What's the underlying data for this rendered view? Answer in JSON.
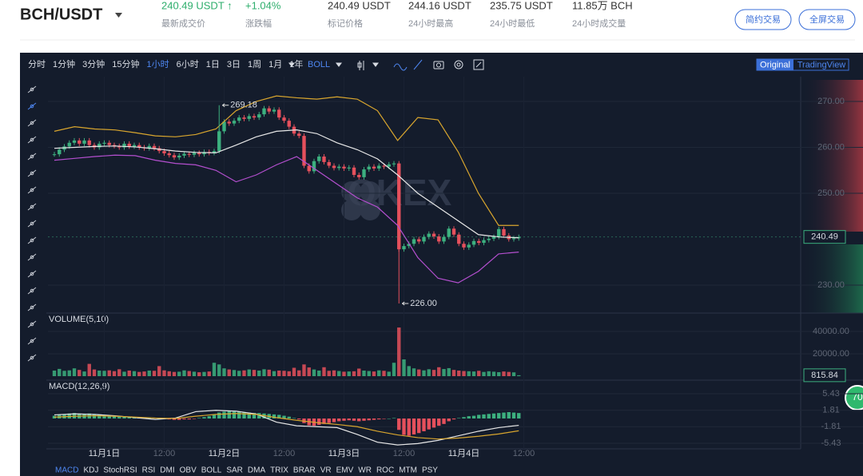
{
  "header": {
    "pair": "BCH/USDT",
    "last_price": "240.49 USDT ↑",
    "last_label": "最新成交价",
    "change": "+1.04%",
    "change_label": "涨跌幅",
    "mark_price": "240.49 USDT",
    "mark_label": "标记价格",
    "high": "244.16 USDT",
    "high_label": "24小时最高",
    "low": "235.75 USDT",
    "low_label": "24小时最低",
    "volume": "11.85万 BCH",
    "volume_label": "24小时成交量",
    "buttons": [
      "简约交易",
      "全屏交易"
    ]
  },
  "toolbar": {
    "intervals": [
      "分时",
      "1分钟",
      "3分钟",
      "15分钟",
      "1小时",
      "6小时",
      "1日",
      "3日",
      "1周",
      "1月",
      "1年"
    ],
    "active": "1小时",
    "indicator": "BOLL",
    "views": [
      "Original",
      "TradingView"
    ]
  },
  "chart": {
    "watermark": "OKEX",
    "badge": "70",
    "price": {
      "ylim": [
        223.91,
        274.7
      ],
      "yticks": [
        {
          "value": 230,
          "label": "230.00"
        },
        {
          "value": 250,
          "label": "250.00"
        },
        {
          "value": 260,
          "label": "260.00"
        },
        {
          "value": 270,
          "label": "270.00"
        }
      ],
      "current": 240.49,
      "high_mark": 269.18,
      "low_mark": {
        "value": 226,
        "label": "226.00"
      },
      "closes": [
        258.5,
        259.5,
        260.2,
        261,
        261.5,
        260.8,
        261.5,
        260.5,
        260,
        260.8,
        261,
        260.5,
        260.3,
        260,
        260.8,
        260.2,
        260.5,
        260,
        259.8,
        260.3,
        259.8,
        259.2,
        258.7,
        258.3,
        257.8,
        258.2,
        258.6,
        258.4,
        258.8,
        258.5,
        259,
        258.8,
        259.2,
        263.5,
        265.6,
        265.2,
        265.8,
        266.5,
        266.2,
        266.8,
        266.5,
        267.2,
        268.5,
        267.8,
        268.2,
        266.5,
        265.8,
        264.5,
        263,
        262.5,
        256,
        254.8,
        257,
        258,
        256.8,
        256,
        255.5,
        255.8,
        255.4,
        255.6,
        254,
        253.5,
        255.2,
        255.8,
        255.4,
        256,
        255.8,
        256.3,
        256.5,
        237.8,
        238.5,
        239,
        240,
        239.5,
        240.5,
        241.2,
        240.6,
        239.5,
        240.5,
        242.3,
        241,
        239,
        238.2,
        238.8,
        239.6,
        239.2,
        239.8,
        240.1,
        240.5,
        242.2,
        240.8,
        240,
        240.2,
        240.49
      ],
      "boll_upper": [
        263.5,
        264.5,
        264,
        263.8,
        263.2,
        262.5,
        262.3,
        262.8,
        264,
        268,
        270,
        271.2,
        270.8,
        270.5,
        271,
        270.5,
        268,
        261.5,
        266.5,
        266,
        259,
        250,
        243,
        243
      ],
      "boll_mid": [
        259.8,
        260,
        260.2,
        260.3,
        260.1,
        259.7,
        259.2,
        258.9,
        258.8,
        260.5,
        262.3,
        263.5,
        263.8,
        263,
        261,
        259.5,
        257.5,
        254,
        250,
        247,
        244,
        241,
        240.5,
        240.3
      ],
      "boll_lower": [
        257.2,
        257.6,
        258,
        258.3,
        258.2,
        257.2,
        256.5,
        256.2,
        255,
        252.5,
        254,
        256.2,
        258,
        255,
        252,
        249,
        247,
        243,
        236,
        231.5,
        230.5,
        233,
        236.8,
        237.2
      ]
    },
    "volume": {
      "title": "VOLUME(5,10)",
      "ylim": [
        -3571,
        56429
      ],
      "yticks": [
        {
          "value": 20000,
          "label": "20000.00"
        },
        {
          "value": 40000,
          "label": "40000.00"
        }
      ],
      "current": 815.84,
      "values": [
        5000,
        6500,
        4800,
        5200,
        7000,
        5600,
        4200,
        11000,
        6000,
        5000,
        4800,
        5200,
        4500,
        6200,
        4000,
        5000,
        4500,
        3800,
        4200,
        5000,
        4800,
        9000,
        5200,
        4400,
        3800,
        4000,
        5200,
        4600,
        4000,
        3500,
        3800,
        4200,
        12000,
        10500,
        7000,
        6000,
        5500,
        4800,
        5200,
        6000,
        5600,
        5000,
        6200,
        5800,
        4500,
        5000,
        4800,
        4400,
        7500,
        5200,
        10500,
        7800,
        6000,
        5000,
        8000,
        4800,
        5200,
        4600,
        4000,
        4200,
        4400,
        6800,
        5000,
        4600,
        4200,
        5200,
        4800,
        4000,
        12000,
        43500,
        15000,
        9000,
        7000,
        6000,
        5200,
        6200,
        5600,
        8000,
        6400,
        7200,
        5600,
        5000,
        4600,
        4400,
        4200,
        4800,
        3800,
        4400,
        4000,
        3600,
        4200,
        3800,
        3400,
        815.84
      ]
    },
    "macd": {
      "title": "MACD(12,26,9)",
      "ylim": [
        -6.66,
        8.41
      ],
      "yticks": [
        {
          "value": -5.43,
          "label": "-5.43"
        },
        {
          "value": -1.81,
          "label": "-1.81"
        },
        {
          "value": 1.81,
          "label": "1.81"
        },
        {
          "value": 5.43,
          "label": "5.43"
        }
      ],
      "hist": [
        0.6,
        0.8,
        0.9,
        1.1,
        1.2,
        1.1,
        1.0,
        1.1,
        0.9,
        0.8,
        0.8,
        0.7,
        0.6,
        0.5,
        0.5,
        0.4,
        0.3,
        0.3,
        0.2,
        0.2,
        0.1,
        0,
        -0.1,
        -0.2,
        -0.3,
        -0.3,
        -0.2,
        -0.2,
        -0.1,
        0.1,
        0.3,
        0.5,
        0.9,
        1.3,
        1.5,
        1.6,
        1.5,
        1.5,
        1.4,
        1.3,
        1.2,
        1.2,
        1.1,
        1.0,
        0.9,
        0.8,
        0.6,
        0.4,
        0.1,
        -0.2,
        -1.0,
        -1.5,
        -1.6,
        -1.4,
        -1.2,
        -1.0,
        -0.8,
        -0.6,
        -0.5,
        -0.4,
        -0.5,
        -0.6,
        -0.5,
        -0.4,
        -0.3,
        -0.2,
        -0.1,
        0,
        0.1,
        -2.5,
        -3.6,
        -3.8,
        -3.5,
        -3.2,
        -2.8,
        -2.4,
        -2.0,
        -1.6,
        -1.2,
        -0.6,
        -0.2,
        0.1,
        0.3,
        0.5,
        0.6,
        0.8,
        0.9,
        1.0,
        1.1,
        1.2,
        1.3,
        1.4,
        1.3,
        1.2
      ],
      "dif": [
        0.8,
        1.0,
        0.9,
        0.6,
        0.2,
        -0.2,
        0.1,
        1.5,
        1.8,
        1.6,
        1.0,
        -0.8,
        -1.6,
        -1.8,
        -2.0,
        -3.5,
        -5.2,
        -5.8,
        -5.5,
        -4.8,
        -3.8,
        -2.8,
        -2.0,
        -1.5
      ],
      "dea": [
        0.3,
        0.5,
        0.6,
        0.5,
        0.3,
        0.1,
        0,
        0.5,
        0.9,
        1.1,
        0.9,
        0.2,
        -0.4,
        -0.9,
        -1.3,
        -1.8,
        -2.8,
        -3.6,
        -4.2,
        -4.5,
        -4.3,
        -3.9,
        -3.4,
        -2.7
      ]
    },
    "time_labels": [
      "11月1日",
      "12:00",
      "11月2日",
      "12:00",
      "11月3日",
      "12:00",
      "11月4日",
      "12:00"
    ],
    "indicator_tabs": [
      "MACD",
      "KDJ",
      "StochRSI",
      "RSI",
      "DMI",
      "OBV",
      "BOLL",
      "SAR",
      "DMA",
      "TRIX",
      "BRAR",
      "VR",
      "EMV",
      "WR",
      "ROC",
      "MTM",
      "PSY"
    ]
  }
}
